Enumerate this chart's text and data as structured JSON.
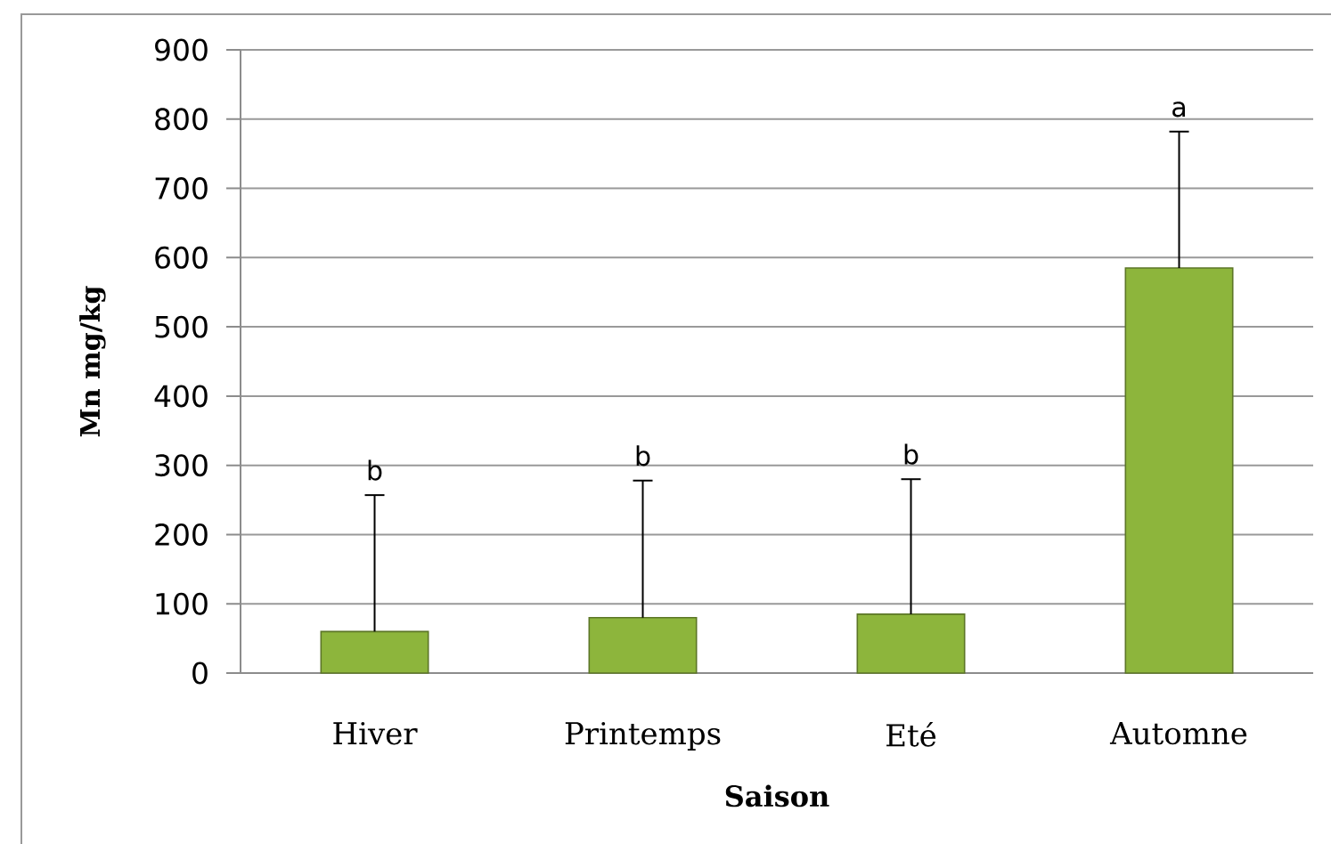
{
  "chart_data": {
    "type": "bar",
    "xlabel": "Saison",
    "ylabel": "Mn mg/kg",
    "categories": [
      "Hiver",
      "Printemps",
      "Eté",
      "Automne"
    ],
    "values": [
      60,
      80,
      85,
      585
    ],
    "errors": [
      [
        60,
        257
      ],
      [
        80,
        278
      ],
      [
        85,
        280
      ],
      [
        585,
        782
      ]
    ],
    "color": "#8db53c",
    "ylim": [
      0,
      900
    ],
    "yticks": [
      0,
      100,
      200,
      300,
      400,
      500,
      600,
      700,
      800,
      900
    ],
    "grid": "y",
    "annotations": [
      "b",
      "b",
      "b",
      "a"
    ]
  }
}
